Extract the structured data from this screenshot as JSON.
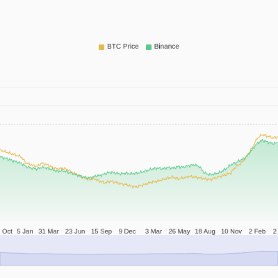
{
  "chart_data": {
    "type": "line",
    "x_ticks": [
      "Oct",
      "5 Jan",
      "31 Mar",
      "23 Jun",
      "15 Sep",
      "9 Dec",
      "3 Mar",
      "26 May",
      "18 Aug",
      "10 Nov",
      "2 Feb",
      "2"
    ],
    "legend_position": "top-center",
    "grid": true,
    "series": [
      {
        "name": "BTC Price",
        "color": "#e6b84a",
        "values": [
          0.78,
          0.76,
          0.74,
          0.72,
          0.7,
          0.62,
          0.6,
          0.58,
          0.62,
          0.6,
          0.57,
          0.55,
          0.56,
          0.54,
          0.5,
          0.47,
          0.44,
          0.42,
          0.43,
          0.4,
          0.38,
          0.4,
          0.39,
          0.37,
          0.36,
          0.34,
          0.33,
          0.35,
          0.37,
          0.39,
          0.4,
          0.42,
          0.44,
          0.45,
          0.43,
          0.44,
          0.46,
          0.45,
          0.44,
          0.43,
          0.42,
          0.44,
          0.46,
          0.48,
          0.5,
          0.58,
          0.62,
          0.7,
          0.8,
          0.92,
          0.97,
          0.95,
          0.93,
          0.94
        ]
      },
      {
        "name": "Binance",
        "color": "#5cc98a",
        "values": [
          0.7,
          0.68,
          0.66,
          0.64,
          0.62,
          0.58,
          0.56,
          0.55,
          0.57,
          0.56,
          0.54,
          0.52,
          0.53,
          0.51,
          0.49,
          0.47,
          0.45,
          0.44,
          0.46,
          0.47,
          0.49,
          0.51,
          0.5,
          0.49,
          0.5,
          0.49,
          0.5,
          0.51,
          0.53,
          0.55,
          0.56,
          0.55,
          0.57,
          0.56,
          0.58,
          0.57,
          0.59,
          0.6,
          0.58,
          0.5,
          0.48,
          0.49,
          0.51,
          0.55,
          0.6,
          0.63,
          0.66,
          0.7,
          0.78,
          0.86,
          0.9,
          0.88,
          0.86,
          0.87
        ]
      }
    ]
  }
}
